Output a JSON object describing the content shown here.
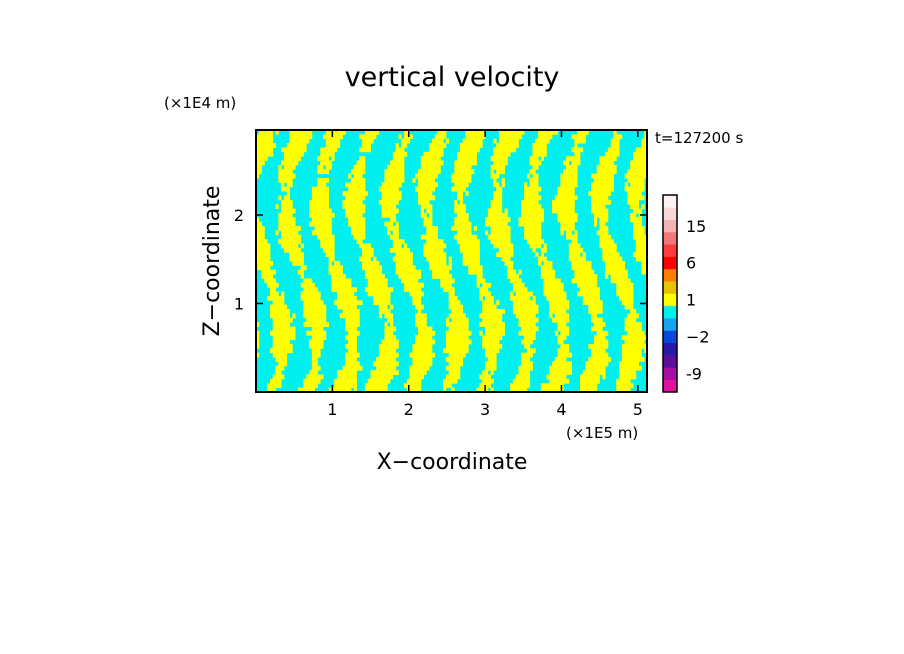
{
  "chart_data": {
    "type": "heatmap",
    "title": "vertical velocity",
    "xlabel": "X−coordinate",
    "ylabel": "Z−coordinate",
    "x_unit": "(×1E5 m)",
    "y_unit": "(×1E4 m)",
    "time_label": "t=127200 s",
    "xlim": [
      0,
      5.12
    ],
    "ylim": [
      0,
      2.96
    ],
    "x_ticks": [
      1,
      2,
      3,
      4,
      5
    ],
    "y_ticks": [
      1,
      2
    ],
    "x_tick_labels": [
      "1",
      "2",
      "3",
      "4",
      "5"
    ],
    "y_tick_labels": [
      "1",
      "2"
    ],
    "colorbar": {
      "levels": [
        -12,
        -9,
        -6,
        -4,
        -2,
        -1,
        0,
        1,
        2,
        4,
        6,
        9,
        12,
        15,
        18,
        21
      ],
      "colors": [
        "#e0119d",
        "#a70fa3",
        "#5d0f9c",
        "#2a18a6",
        "#0a48dc",
        "#16a3f0",
        "#00f0f0",
        "#ffff00",
        "#e8c400",
        "#ff7e00",
        "#ff0000",
        "#ff3c3c",
        "#f07878",
        "#f4b4b4",
        "#fbd8d8",
        "#fff2f2"
      ],
      "tick_labels": [
        "-9",
        "−2",
        "1",
        "6",
        "15"
      ],
      "tick_values": [
        -9,
        -2,
        1,
        6,
        15
      ]
    },
    "dominant_colors": {
      "positive": "#ffff00",
      "negative": "#00f0f0"
    }
  }
}
